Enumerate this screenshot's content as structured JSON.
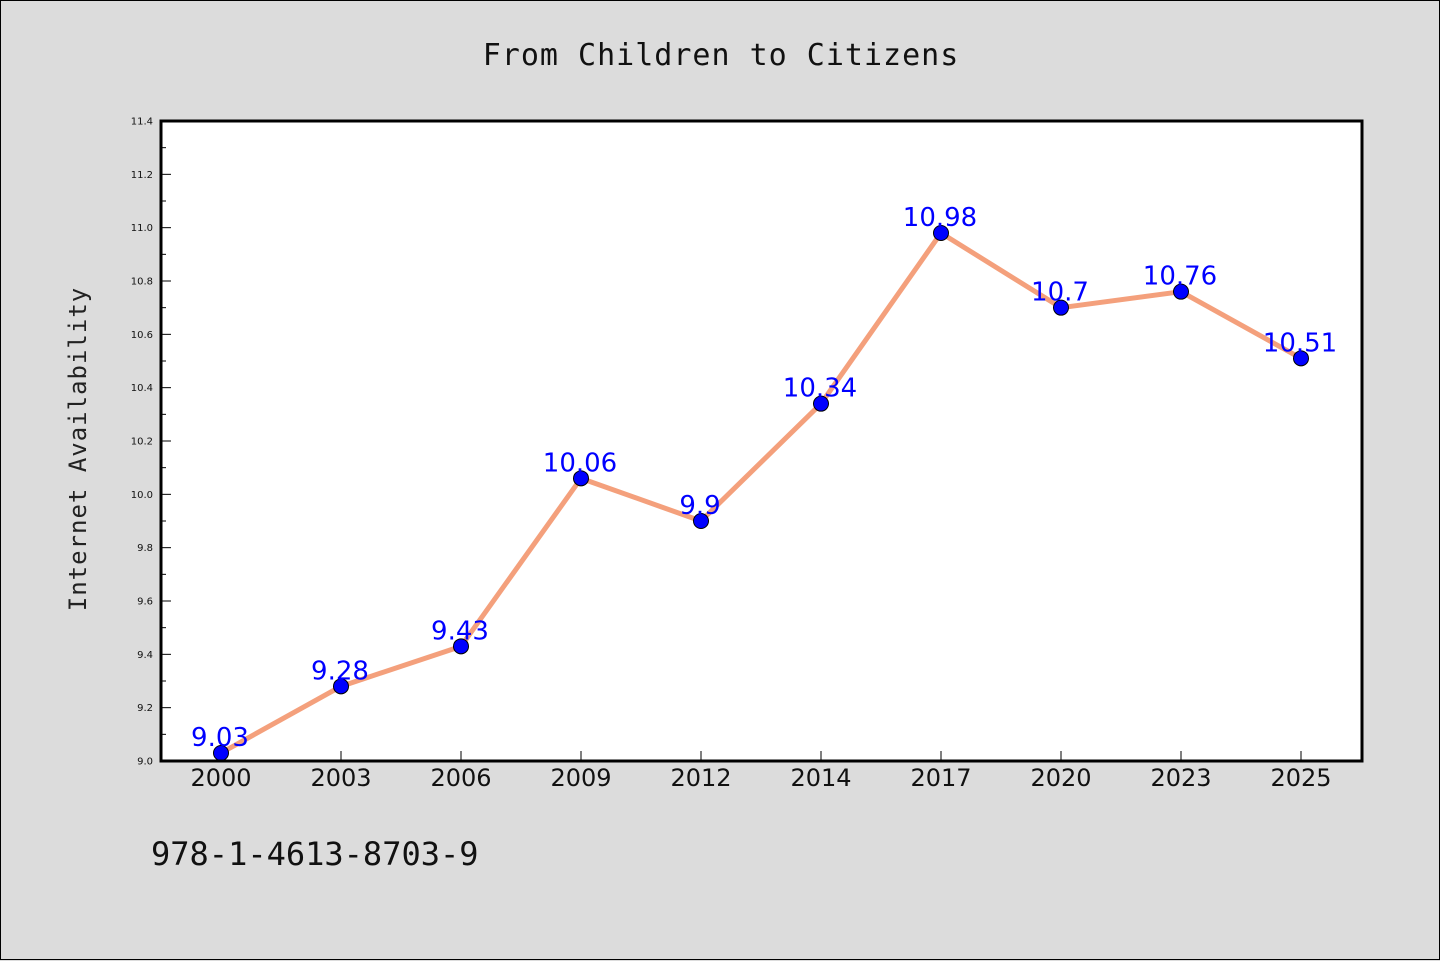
{
  "chart_data": {
    "type": "line",
    "title": "From Children to Citizens",
    "xlabel": "",
    "ylabel": "Internet Availability",
    "categories": [
      "2000",
      "2003",
      "2006",
      "2009",
      "2012",
      "2014",
      "2017",
      "2020",
      "2023",
      "2025"
    ],
    "series": [
      {
        "values": [
          9.03,
          9.28,
          9.43,
          10.06,
          9.9,
          10.34,
          10.98,
          10.7,
          10.76,
          10.51
        ],
        "data_labels": [
          "9.03",
          "9.28",
          "9.43",
          "10.06",
          "9.9",
          "10.34",
          "10.98",
          "10.7",
          "10.76",
          "10.51"
        ],
        "line_color": "#f4a07c",
        "marker_color": "#0000ff"
      }
    ],
    "ylim": [
      9.0,
      11.4
    ],
    "yticks": [
      "9.0",
      "9.2",
      "9.4",
      "9.6",
      "9.8",
      "10.0",
      "10.2",
      "10.4",
      "10.6",
      "10.8",
      "11.0",
      "11.2",
      "11.4"
    ],
    "grid": false,
    "legend": "none"
  },
  "footer": {
    "isbn": "978-1-4613-8703-9"
  },
  "colors": {
    "background": "#dcdcdc",
    "plot_area": "#ffffff",
    "line": "#f4a07c",
    "marker": "#0000ff",
    "data_label": "#0000ff"
  }
}
